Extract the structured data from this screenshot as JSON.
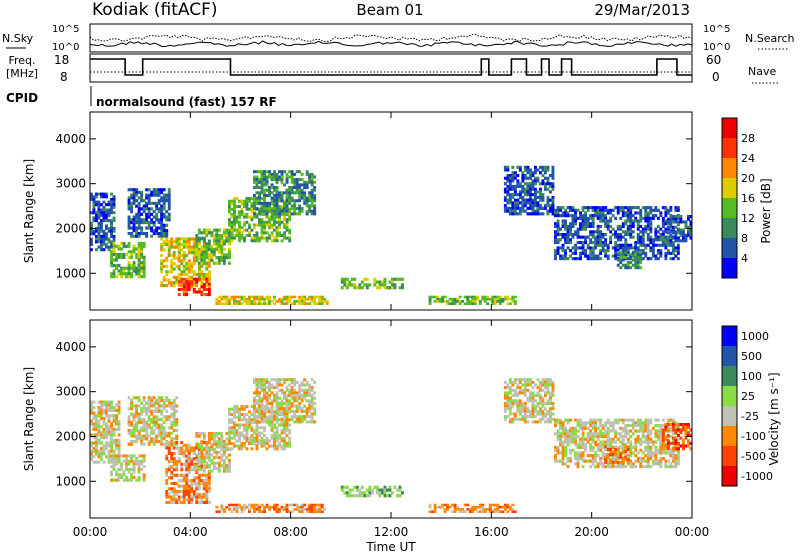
{
  "header": {
    "station": "Kodiak (fitACF)",
    "beam": "Beam 01",
    "date": "29/Mar/2013"
  },
  "panels": {
    "noise": {
      "left_label": "N.Sky",
      "right_label": "N.Search",
      "tick_hi": "10^5",
      "tick_lo": "10^0"
    },
    "freq": {
      "left_label_1": "Freq.",
      "left_label_2": "[MHz]",
      "right_label": "Nave",
      "left_ticks": [
        "18",
        "8"
      ],
      "right_ticks": [
        "60",
        "0"
      ]
    },
    "cpid": {
      "left_label": "CPID",
      "program": "normalsound (fast) 157 RF"
    }
  },
  "colors": {
    "power": [
      "#0000ff",
      "#2255aa",
      "#3a8a5a",
      "#55bb22",
      "#ddcc00",
      "#ff8800",
      "#ff3300",
      "#ee0000"
    ],
    "velocity": [
      "#ee0000",
      "#ff4400",
      "#ff8800",
      "#c0c0b4",
      "#88dd44",
      "#3a8a5a",
      "#2255aa",
      "#0000ff"
    ]
  },
  "chart_data": [
    {
      "type": "heatmap",
      "title": "",
      "ylabel": "Slant Range [km]",
      "y_ticks": [
        "1000",
        "2000",
        "3000",
        "4000"
      ],
      "ylim": [
        180,
        4600
      ],
      "xlim_hours": [
        0,
        24
      ],
      "colorbar": {
        "label": "Power [dB]",
        "ticks": [
          "4",
          "8",
          "12",
          "16",
          "20",
          "24",
          "28"
        ],
        "range": [
          0,
          32
        ]
      },
      "regions": [
        {
          "t": [
            0.0,
            1.0
          ],
          "r": [
            1500,
            2800
          ],
          "level": 1
        },
        {
          "t": [
            0.8,
            2.2
          ],
          "r": [
            900,
            1700
          ],
          "level": 3
        },
        {
          "t": [
            1.5,
            3.2
          ],
          "r": [
            1800,
            2900
          ],
          "level": 1
        },
        {
          "t": [
            2.8,
            4.8
          ],
          "r": [
            700,
            1800
          ],
          "level": 4
        },
        {
          "t": [
            3.5,
            4.8
          ],
          "r": [
            500,
            900
          ],
          "level": 6
        },
        {
          "t": [
            4.2,
            5.6
          ],
          "r": [
            1200,
            2000
          ],
          "level": 3
        },
        {
          "t": [
            5.0,
            9.5
          ],
          "r": [
            300,
            500
          ],
          "level": 4
        },
        {
          "t": [
            5.5,
            8.0
          ],
          "r": [
            1700,
            2700
          ],
          "level": 3
        },
        {
          "t": [
            6.5,
            9.0
          ],
          "r": [
            2300,
            3300
          ],
          "level": 2
        },
        {
          "t": [
            10.0,
            12.5
          ],
          "r": [
            650,
            900
          ],
          "level": 3
        },
        {
          "t": [
            13.5,
            17.0
          ],
          "r": [
            300,
            500
          ],
          "level": 3
        },
        {
          "t": [
            16.5,
            18.5
          ],
          "r": [
            2300,
            3400
          ],
          "level": 1
        },
        {
          "t": [
            18.5,
            23.5
          ],
          "r": [
            1300,
            2500
          ],
          "level": 1
        },
        {
          "t": [
            21.0,
            22.0
          ],
          "r": [
            1100,
            1500
          ],
          "level": 2
        },
        {
          "t": [
            23.0,
            24.0
          ],
          "r": [
            1700,
            2300
          ],
          "level": 1
        }
      ]
    },
    {
      "type": "heatmap",
      "title": "",
      "ylabel": "Slant Range [km]",
      "y_ticks": [
        "1000",
        "2000",
        "3000",
        "4000"
      ],
      "ylim": [
        180,
        4600
      ],
      "xlim_hours": [
        0,
        24
      ],
      "colorbar": {
        "label": "Velocity [m s⁻¹]",
        "ticks": [
          "1000",
          "500",
          "100",
          "25",
          "-25",
          "-100",
          "-500",
          "-1000"
        ],
        "range": [
          -1200,
          1200
        ]
      },
      "regions": [
        {
          "t": [
            0.0,
            1.2
          ],
          "r": [
            1400,
            2800
          ],
          "level": 3
        },
        {
          "t": [
            0.8,
            2.2
          ],
          "r": [
            1000,
            1600
          ],
          "level": 3
        },
        {
          "t": [
            1.5,
            3.5
          ],
          "r": [
            1800,
            2900
          ],
          "level": 3
        },
        {
          "t": [
            3.0,
            4.8
          ],
          "r": [
            500,
            1900
          ],
          "level": 2
        },
        {
          "t": [
            4.2,
            5.6
          ],
          "r": [
            1200,
            2100
          ],
          "level": 3
        },
        {
          "t": [
            5.0,
            9.5
          ],
          "r": [
            300,
            500
          ],
          "level": 2
        },
        {
          "t": [
            5.5,
            8.0
          ],
          "r": [
            1700,
            2700
          ],
          "level": 3
        },
        {
          "t": [
            6.5,
            9.0
          ],
          "r": [
            2300,
            3300
          ],
          "level": 3
        },
        {
          "t": [
            10.0,
            12.5
          ],
          "r": [
            650,
            900
          ],
          "level": 4
        },
        {
          "t": [
            13.5,
            17.0
          ],
          "r": [
            300,
            500
          ],
          "level": 2
        },
        {
          "t": [
            16.5,
            18.5
          ],
          "r": [
            2300,
            3300
          ],
          "level": 3
        },
        {
          "t": [
            18.5,
            23.5
          ],
          "r": [
            1300,
            2400
          ],
          "level": 3
        },
        {
          "t": [
            20.5,
            21.5
          ],
          "r": [
            1400,
            1800
          ],
          "level": 2
        },
        {
          "t": [
            22.8,
            24.0
          ],
          "r": [
            1700,
            2300
          ],
          "level": 1
        }
      ]
    }
  ],
  "time_axis": {
    "label": "Time UT",
    "ticks": [
      "00:00",
      "04:00",
      "08:00",
      "12:00",
      "16:00",
      "20:00",
      "00:00"
    ]
  }
}
